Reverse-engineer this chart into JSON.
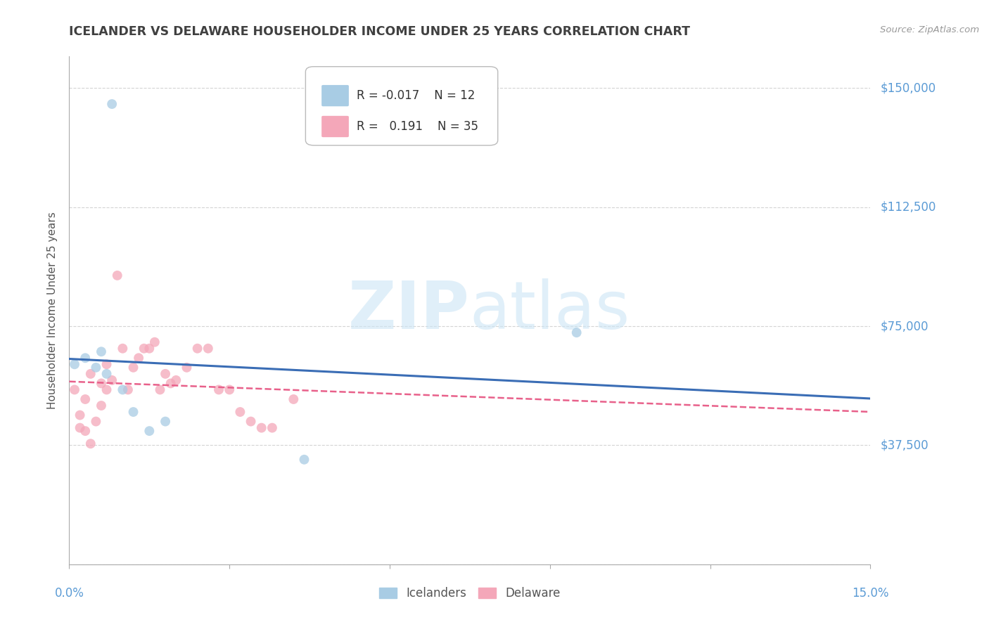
{
  "title": "ICELANDER VS DELAWARE HOUSEHOLDER INCOME UNDER 25 YEARS CORRELATION CHART",
  "source": "Source: ZipAtlas.com",
  "ylabel": "Householder Income Under 25 years",
  "xlim": [
    0.0,
    0.15
  ],
  "ylim": [
    0,
    160000
  ],
  "yticks": [
    0,
    37500,
    75000,
    112500,
    150000
  ],
  "ytick_labels": [
    "",
    "$37,500",
    "$75,000",
    "$112,500",
    "$150,000"
  ],
  "legend_blue_R": "-0.017",
  "legend_blue_N": "12",
  "legend_pink_R": "0.191",
  "legend_pink_N": "35",
  "icelander_color": "#a8cce4",
  "delaware_color": "#f4a7b9",
  "icelander_line_color": "#3a6db5",
  "delaware_line_color": "#e8608a",
  "blue_points_x": [
    0.001,
    0.003,
    0.005,
    0.006,
    0.007,
    0.008,
    0.01,
    0.012,
    0.015,
    0.044,
    0.095,
    0.018
  ],
  "blue_points_y": [
    63000,
    65000,
    62000,
    67000,
    60000,
    145000,
    55000,
    48000,
    42000,
    33000,
    73000,
    45000
  ],
  "pink_points_x": [
    0.001,
    0.002,
    0.002,
    0.003,
    0.003,
    0.004,
    0.004,
    0.005,
    0.006,
    0.006,
    0.007,
    0.007,
    0.008,
    0.009,
    0.01,
    0.011,
    0.012,
    0.013,
    0.014,
    0.015,
    0.016,
    0.017,
    0.018,
    0.019,
    0.02,
    0.022,
    0.024,
    0.026,
    0.028,
    0.03,
    0.032,
    0.034,
    0.036,
    0.038,
    0.042
  ],
  "pink_points_y": [
    55000,
    47000,
    43000,
    52000,
    42000,
    60000,
    38000,
    45000,
    57000,
    50000,
    63000,
    55000,
    58000,
    91000,
    68000,
    55000,
    62000,
    65000,
    68000,
    68000,
    70000,
    55000,
    60000,
    57000,
    58000,
    62000,
    68000,
    68000,
    55000,
    55000,
    48000,
    45000,
    43000,
    43000,
    52000
  ],
  "background_color": "#ffffff",
  "grid_color": "#d0d0d0",
  "title_color": "#404040",
  "axis_label_color": "#5b9bd5",
  "marker_size": 100,
  "alpha": 0.75,
  "watermark_color": "#cce5f5",
  "watermark_alpha": 0.6
}
